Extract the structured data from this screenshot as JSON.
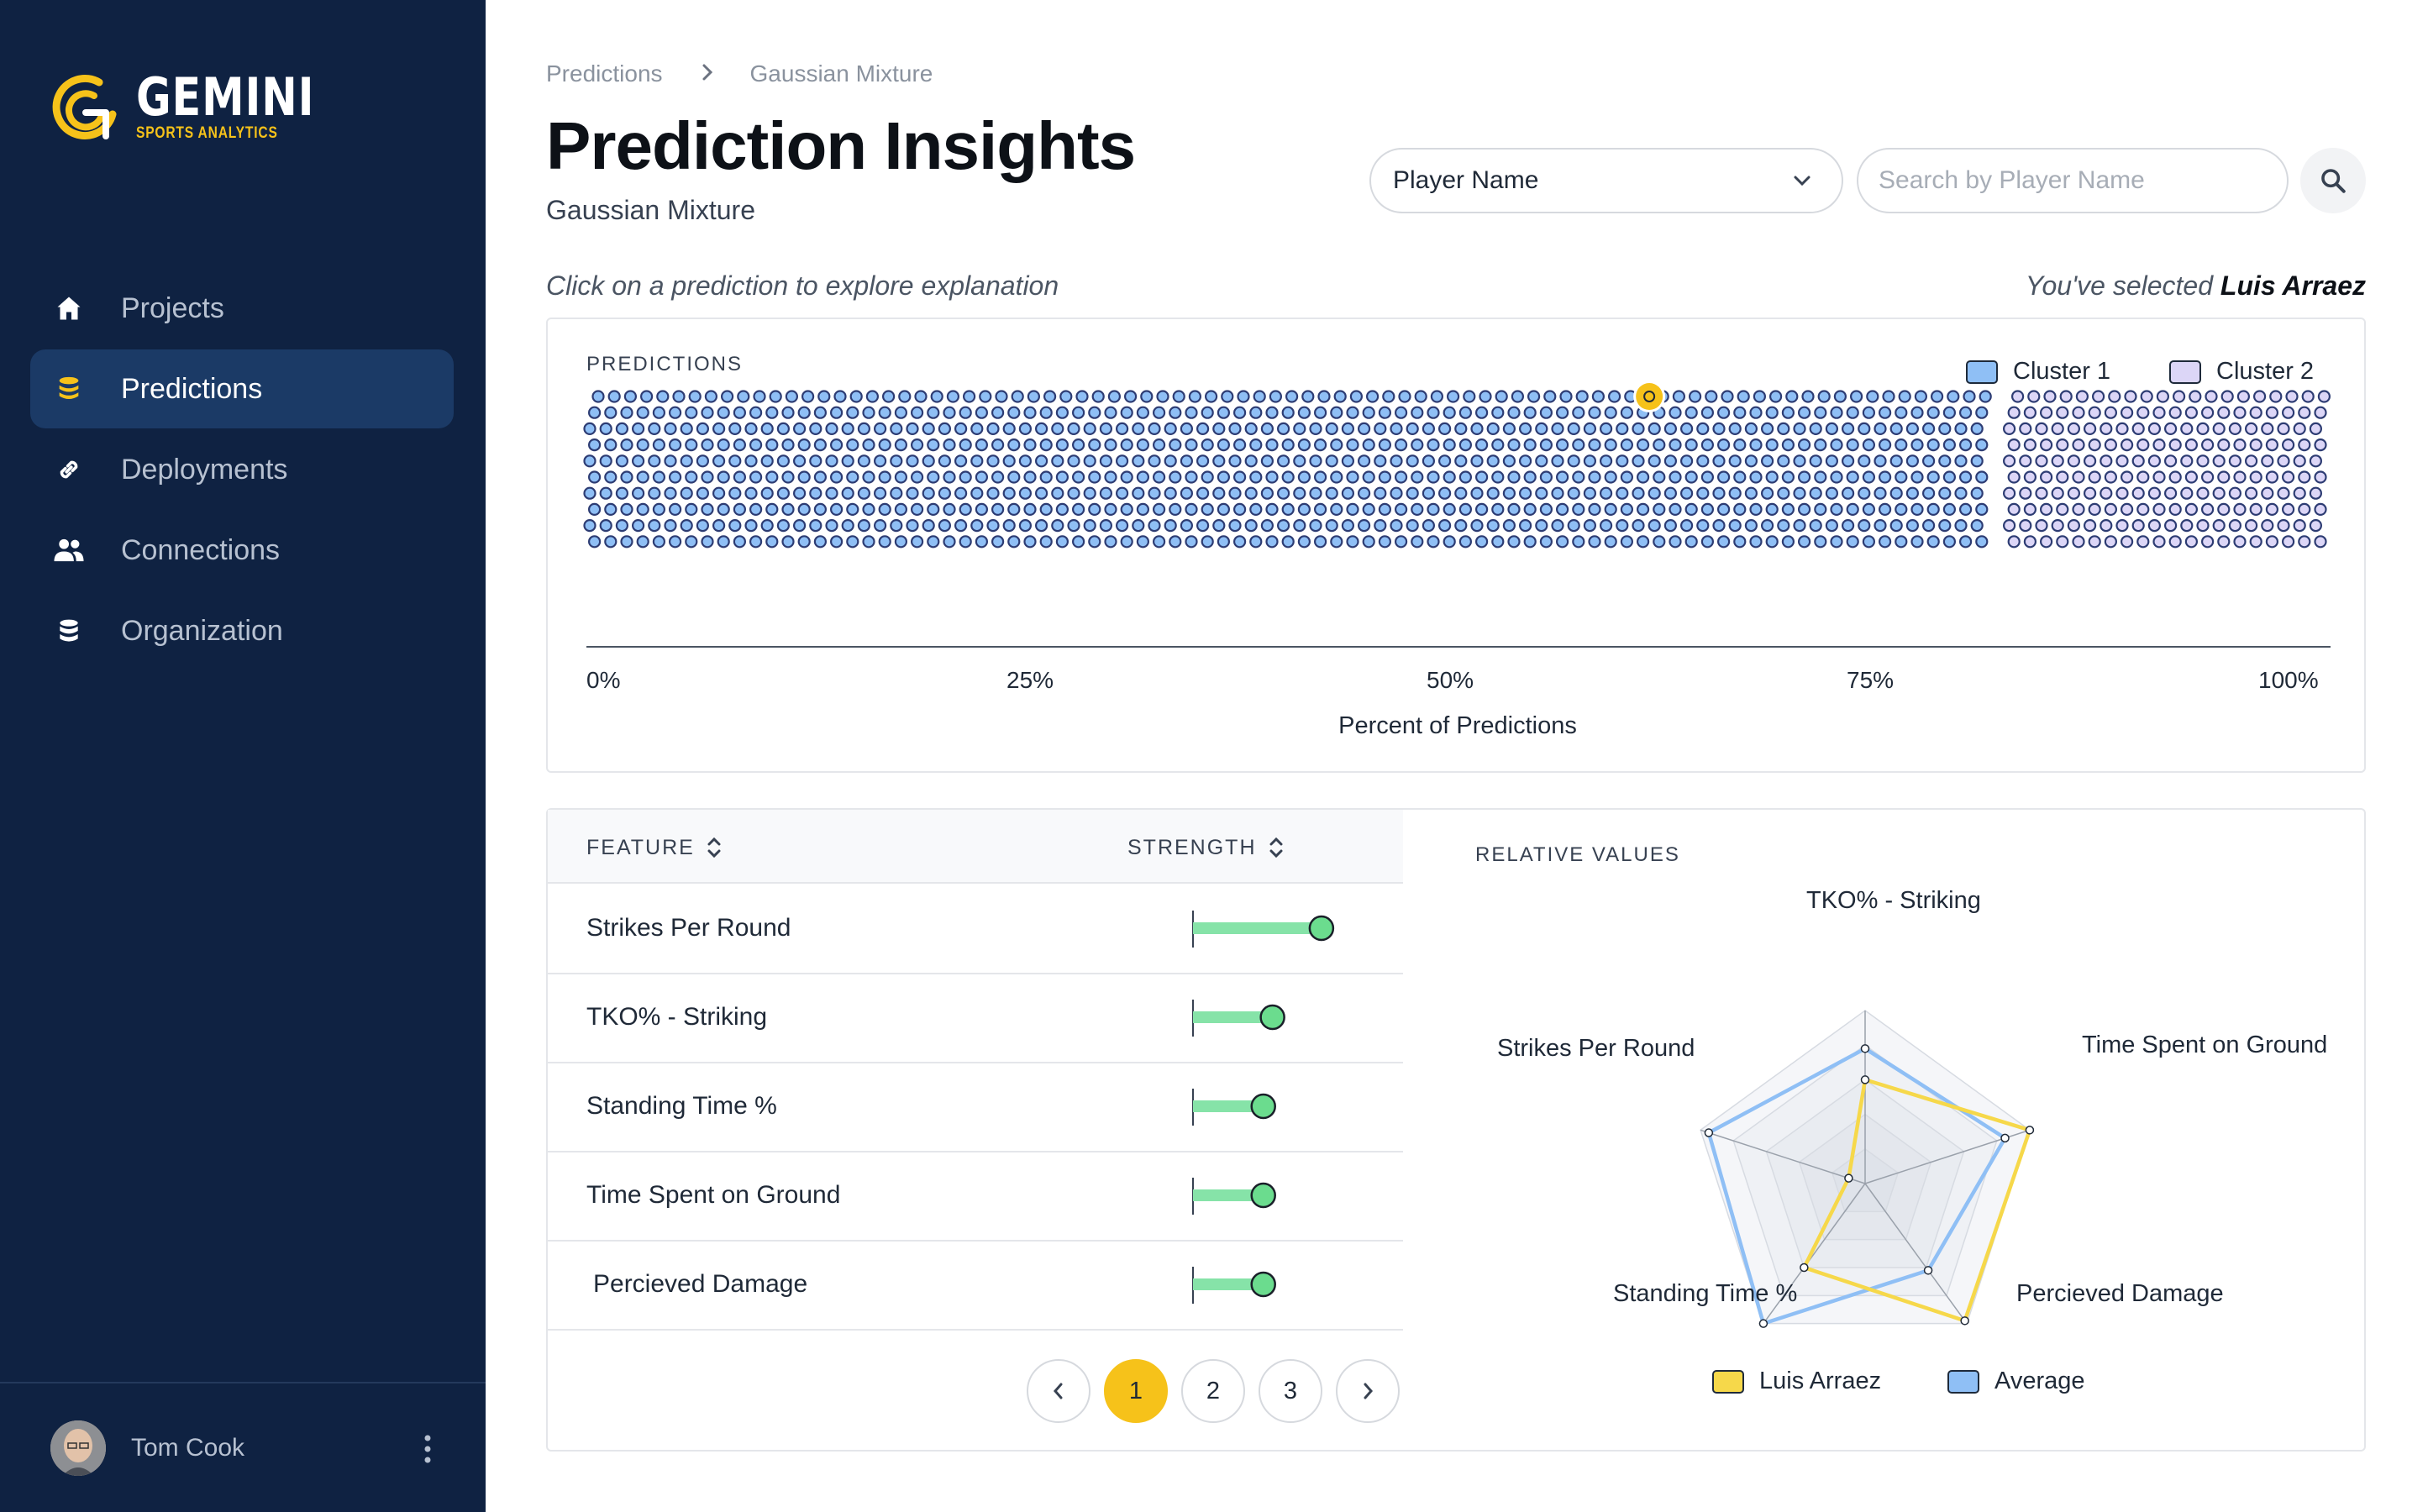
{
  "brand": {
    "name": "GEMINI",
    "tagline": "SPORTS ANALYTICS"
  },
  "sidebar": {
    "items": [
      {
        "label": "Projects",
        "icon": "home-icon",
        "active": false
      },
      {
        "label": "Predictions",
        "icon": "coins-icon",
        "active": true
      },
      {
        "label": "Deployments",
        "icon": "link-icon",
        "active": false
      },
      {
        "label": "Connections",
        "icon": "users-icon",
        "active": false
      },
      {
        "label": "Organization",
        "icon": "database-icon",
        "active": false
      }
    ],
    "user": {
      "name": "Tom Cook"
    }
  },
  "breadcrumb": {
    "first": "Predictions",
    "second": "Gaussian Mixture"
  },
  "header": {
    "title": "Prediction Insights",
    "subtitle": "Gaussian Mixture"
  },
  "filters": {
    "select_value": "Player Name",
    "search_placeholder": "Search by Player Name"
  },
  "hint": "Click on a prediction to explore explanation",
  "selection": {
    "prefix": "You've selected",
    "player": "Luis Arraez"
  },
  "predictions": {
    "label": "PREDICTIONS",
    "legend": [
      {
        "name": "Cluster 1",
        "color": "#8fbff5"
      },
      {
        "name": "Cluster 2",
        "color": "#dcd6f7"
      }
    ],
    "ticks": [
      "0%",
      "25%",
      "50%",
      "75%",
      "100%"
    ],
    "x_title": "Percent of Predictions",
    "cluster1_share": 81,
    "cluster2_share": 19,
    "selected_share": 61
  },
  "features": {
    "col_feature": "FEATURE",
    "col_strength": "STRENGTH",
    "rows": [
      {
        "name": "Strikes Per Round",
        "strength": 0.84
      },
      {
        "name": "TKO% - Striking",
        "strength": 0.52
      },
      {
        "name": "Standing Time %",
        "strength": 0.46
      },
      {
        "name": "Time Spent on Ground",
        "strength": 0.46
      },
      {
        "name": "Percieved Damage",
        "strength": 0.46
      }
    ],
    "pages": [
      "1",
      "2",
      "3"
    ],
    "current_page": "1"
  },
  "radar": {
    "label": "RELATIVE VALUES",
    "axes": [
      "TKO% - Striking",
      "Time Spent on Ground",
      "Percieved Damage",
      "Standing Time %",
      "Strikes Per Round"
    ],
    "series": [
      {
        "name": "Luis Arraez",
        "color": "#f6d84a",
        "values": [
          0.6,
          1.0,
          0.98,
          0.6,
          0.1
        ]
      },
      {
        "name": "Average",
        "color": "#8fbff5",
        "values": [
          0.78,
          0.85,
          0.62,
          1.0,
          0.95
        ]
      }
    ]
  }
}
